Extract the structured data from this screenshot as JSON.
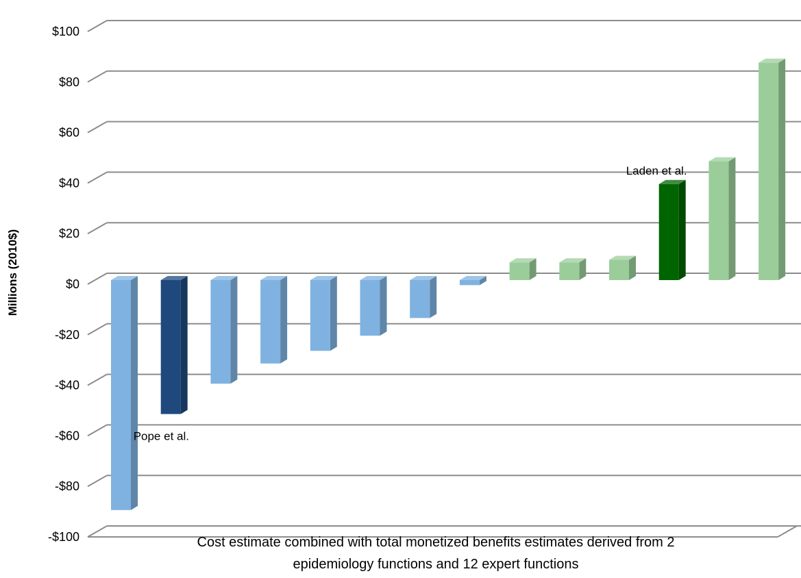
{
  "chart_data": {
    "type": "bar",
    "title": "",
    "ylabel": "Millions (2010$)",
    "xlabel_lines": [
      "Cost estimate combined with total monetized benefits estimates derived from 2",
      "epidemiology functions and 12 expert functions"
    ],
    "ylim": [
      -100,
      100
    ],
    "yticks": [
      100,
      80,
      60,
      40,
      20,
      0,
      -20,
      -40,
      -60,
      -80,
      -100
    ],
    "ytick_labels": [
      "$100",
      "$80",
      "$60",
      "$40",
      "$20",
      "$0",
      "-$20",
      "-$40",
      "-$60",
      "-$80",
      "-$100"
    ],
    "grid": true,
    "three_d": true,
    "values": [
      -91,
      -53,
      -41,
      -33,
      -28,
      -22,
      -15,
      -2,
      7,
      7,
      8,
      38,
      47,
      86
    ],
    "bar_colors": [
      "#7fb2e0",
      "#1f497d",
      "#7fb2e0",
      "#7fb2e0",
      "#7fb2e0",
      "#7fb2e0",
      "#7fb2e0",
      "#7fb2e0",
      "#9bcd9b",
      "#9bcd9b",
      "#9bcd9b",
      "#006400",
      "#9bcd9b",
      "#9bcd9b"
    ],
    "annotations": [
      {
        "text": "Pope et al.",
        "bar_index": 1
      },
      {
        "text": "Laden et al.",
        "bar_index": 11
      }
    ]
  }
}
